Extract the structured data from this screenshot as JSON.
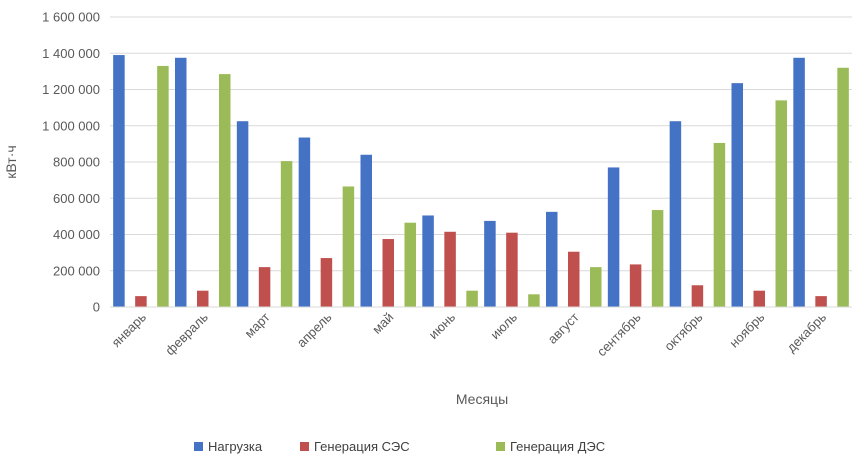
{
  "chart_data": {
    "type": "bar",
    "categories": [
      "январь",
      "февраль",
      "март",
      "апрель",
      "май",
      "июнь",
      "июль",
      "август",
      "сентябрь",
      "октябрь",
      "ноябрь",
      "декабрь"
    ],
    "series": [
      {
        "name": "Нагрузка",
        "color": "#4472C4",
        "values": [
          1390000,
          1375000,
          1025000,
          935000,
          840000,
          505000,
          475000,
          525000,
          770000,
          1025000,
          1235000,
          1375000
        ]
      },
      {
        "name": "Генерация СЭС",
        "color": "#C0504D",
        "values": [
          60000,
          90000,
          220000,
          270000,
          375000,
          415000,
          410000,
          305000,
          235000,
          120000,
          90000,
          60000
        ]
      },
      {
        "name": "Генерация ДЭС",
        "color": "#9BBB59",
        "values": [
          1330000,
          1285000,
          805000,
          665000,
          465000,
          90000,
          70000,
          220000,
          535000,
          905000,
          1140000,
          1320000
        ]
      }
    ],
    "xlabel": "Месяцы",
    "ylabel": "кВт·ч",
    "ylim": [
      0,
      1600000
    ],
    "yticks": [
      0,
      200000,
      400000,
      600000,
      800000,
      1000000,
      1200000,
      1400000,
      1600000
    ],
    "ytick_labels": [
      "0",
      "200 000",
      "400 000",
      "600 000",
      "800 000",
      "1 000 000",
      "1 200 000",
      "1 400 000",
      "1 600 000"
    ],
    "grid": true,
    "legend_position": "bottom"
  }
}
